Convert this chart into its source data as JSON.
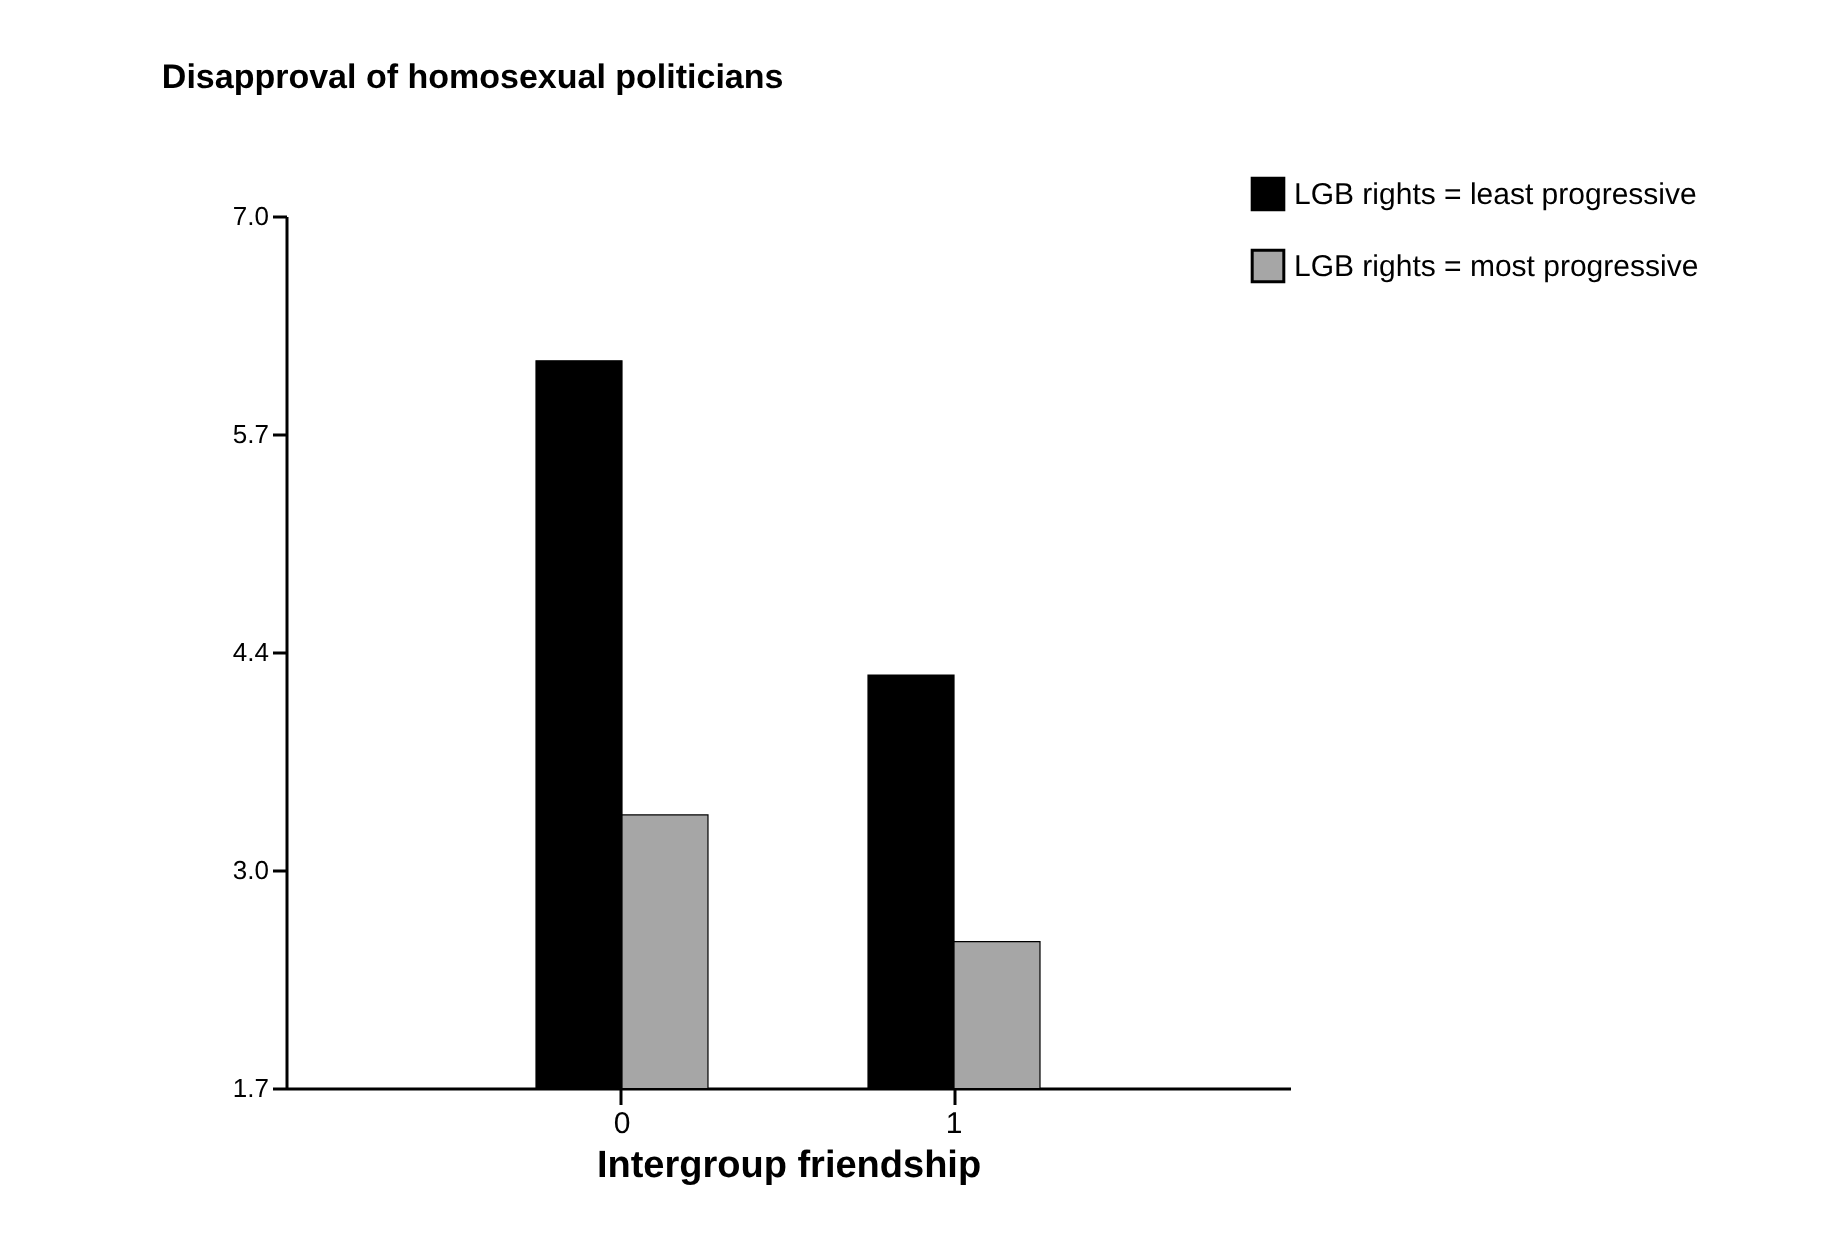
{
  "chart_data": {
    "type": "bar",
    "title": "Disapproval of homosexual politicians",
    "xlabel": "Intergroup friendship",
    "categories": [
      "0",
      "1"
    ],
    "series": [
      {
        "name": "LGB rights = least progressive",
        "color": "#000000",
        "values": [
          6.12,
          4.21
        ]
      },
      {
        "name": "LGB rights = most progressive",
        "color": "#a6a6a6",
        "values": [
          3.36,
          2.59
        ]
      }
    ],
    "ylim": [
      1.7,
      7.0
    ],
    "yticks": [
      1.7,
      {
        "value": 3.025,
        "label": "3.0"
      },
      {
        "value": 4.35,
        "label": "4.4"
      },
      {
        "value": 5.675,
        "label": "5.7"
      },
      {
        "value": 7.0,
        "label": "7.0"
      }
    ],
    "grid": false,
    "legend": "top right"
  }
}
